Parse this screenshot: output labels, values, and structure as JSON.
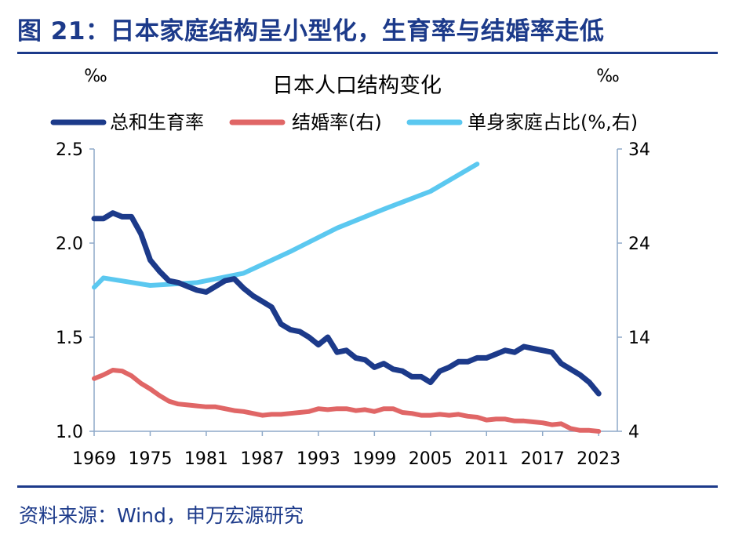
{
  "header": {
    "figure_title": "图 21：日本家庭结构呈小型化，生育率与结婚率走低"
  },
  "footer": {
    "source": "资料来源：Wind，申万宏源研究"
  },
  "chart_data": {
    "type": "line",
    "title": "日本人口结构变化",
    "y_left_unit": "‰",
    "y_right_unit": "‰",
    "y_left_lim": [
      1.0,
      2.5
    ],
    "y_right_lim": [
      4,
      34
    ],
    "y_left_ticks": [
      "2.5",
      "2.0",
      "1.5",
      "1.0"
    ],
    "y_right_ticks": [
      "34",
      "24",
      "14",
      "4"
    ],
    "x_lim": [
      1969,
      2025
    ],
    "x_ticks": [
      "1969",
      "1975",
      "1981",
      "1987",
      "1993",
      "1999",
      "2005",
      "2011",
      "2017",
      "2023"
    ],
    "legend_position": "top",
    "series": [
      {
        "name": "总和生育率",
        "axis": "left",
        "color": "#1c3a8a",
        "x": [
          1969,
          1970,
          1971,
          1972,
          1973,
          1974,
          1975,
          1976,
          1977,
          1978,
          1979,
          1980,
          1981,
          1982,
          1983,
          1984,
          1985,
          1986,
          1987,
          1988,
          1989,
          1990,
          1991,
          1992,
          1993,
          1994,
          1995,
          1996,
          1997,
          1998,
          1999,
          2000,
          2001,
          2002,
          2003,
          2004,
          2005,
          2006,
          2007,
          2008,
          2009,
          2010,
          2011,
          2012,
          2013,
          2014,
          2015,
          2016,
          2017,
          2018,
          2019,
          2020,
          2021,
          2022,
          2023
        ],
        "values": [
          2.13,
          2.13,
          2.16,
          2.14,
          2.14,
          2.05,
          1.91,
          1.85,
          1.8,
          1.79,
          1.77,
          1.75,
          1.74,
          1.77,
          1.8,
          1.81,
          1.76,
          1.72,
          1.69,
          1.66,
          1.57,
          1.54,
          1.53,
          1.5,
          1.46,
          1.5,
          1.42,
          1.43,
          1.39,
          1.38,
          1.34,
          1.36,
          1.33,
          1.32,
          1.29,
          1.29,
          1.26,
          1.32,
          1.34,
          1.37,
          1.37,
          1.39,
          1.39,
          1.41,
          1.43,
          1.42,
          1.45,
          1.44,
          1.43,
          1.42,
          1.36,
          1.33,
          1.3,
          1.26,
          1.2
        ]
      },
      {
        "name": "结婚率(右)",
        "axis": "right",
        "color": "#e06666",
        "x": [
          1969,
          1970,
          1971,
          1972,
          1973,
          1974,
          1975,
          1976,
          1977,
          1978,
          1979,
          1980,
          1981,
          1982,
          1983,
          1984,
          1985,
          1986,
          1987,
          1988,
          1989,
          1990,
          1991,
          1992,
          1993,
          1994,
          1995,
          1996,
          1997,
          1998,
          1999,
          2000,
          2001,
          2002,
          2003,
          2004,
          2005,
          2006,
          2007,
          2008,
          2009,
          2010,
          2011,
          2012,
          2013,
          2014,
          2015,
          2016,
          2017,
          2018,
          2019,
          2020,
          2021,
          2022,
          2023
        ],
        "values": [
          9.6,
          10.0,
          10.5,
          10.4,
          9.9,
          9.1,
          8.5,
          7.8,
          7.2,
          6.9,
          6.8,
          6.7,
          6.6,
          6.6,
          6.4,
          6.2,
          6.1,
          5.9,
          5.7,
          5.8,
          5.8,
          5.9,
          6.0,
          6.1,
          6.4,
          6.3,
          6.4,
          6.4,
          6.2,
          6.3,
          6.1,
          6.4,
          6.4,
          6.0,
          5.9,
          5.7,
          5.7,
          5.8,
          5.7,
          5.8,
          5.6,
          5.5,
          5.2,
          5.3,
          5.3,
          5.1,
          5.1,
          5.0,
          4.9,
          4.7,
          4.8,
          4.3,
          4.1,
          4.1,
          4.0
        ]
      },
      {
        "name": "单身家庭占比(%,右)",
        "axis": "right",
        "color": "#5bc8f0",
        "x": [
          1969,
          1970,
          1975,
          1980,
          1985,
          1990,
          1995,
          2000,
          2005,
          2010
        ],
        "values": [
          19.3,
          20.3,
          19.5,
          19.8,
          20.8,
          23.1,
          25.6,
          27.6,
          29.5,
          32.4
        ]
      }
    ]
  }
}
